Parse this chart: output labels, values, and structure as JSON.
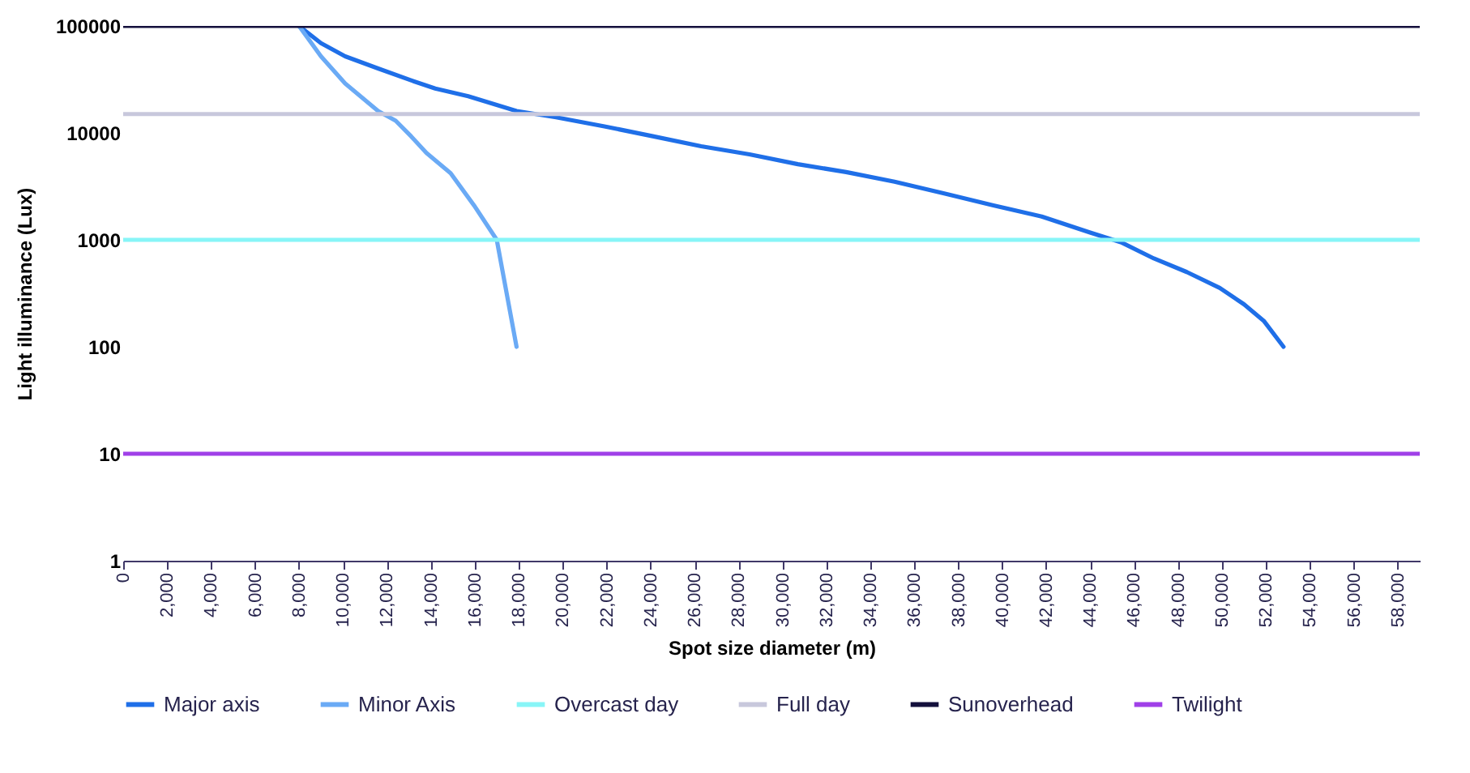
{
  "chart_data": {
    "type": "line",
    "xlabel": "Spot size diameter (m)",
    "ylabel": "Light illuminance (Lux)",
    "log": "y",
    "legend": "bottom",
    "grid": false,
    "xlim": [
      0,
      59000
    ],
    "ylim": [
      1,
      100000
    ],
    "xticks": [
      0,
      {
        "value": 2000,
        "label": "2,000"
      },
      {
        "value": 4000,
        "label": "4,000"
      },
      {
        "value": 6000,
        "label": "6,000"
      },
      {
        "value": 8000,
        "label": "8,000"
      },
      {
        "value": 10000,
        "label": "10,000"
      },
      {
        "value": 12000,
        "label": "12,000"
      },
      {
        "value": 14000,
        "label": "14,000"
      },
      {
        "value": 16000,
        "label": "16,000"
      },
      {
        "value": 18000,
        "label": "18,000"
      },
      {
        "value": 20000,
        "label": "20,000"
      },
      {
        "value": 22000,
        "label": "22,000"
      },
      {
        "value": 24000,
        "label": "24,000"
      },
      {
        "value": 26000,
        "label": "26,000"
      },
      {
        "value": 28000,
        "label": "28,000"
      },
      {
        "value": 30000,
        "label": "30,000"
      },
      {
        "value": 32000,
        "label": "32,000"
      },
      {
        "value": 34000,
        "label": "34,000"
      },
      {
        "value": 36000,
        "label": "36,000"
      },
      {
        "value": 38000,
        "label": "38,000"
      },
      {
        "value": 40000,
        "label": "40,000"
      },
      {
        "value": 42000,
        "label": "42,000"
      },
      {
        "value": 44000,
        "label": "44,000"
      },
      {
        "value": 46000,
        "label": "46,000"
      },
      {
        "value": 48000,
        "label": "48,000"
      },
      {
        "value": 50000,
        "label": "50,000"
      },
      {
        "value": 52000,
        "label": "52,000"
      },
      {
        "value": 54000,
        "label": "54,000"
      },
      {
        "value": 56000,
        "label": "56,000"
      },
      {
        "value": 58000,
        "label": "58,000"
      }
    ],
    "yticks": [
      1,
      10,
      100,
      1000,
      10000,
      100000
    ],
    "series": [
      {
        "name": "Major axis",
        "color": "#1f6fe8",
        "x": [
          8000,
          9000,
          10100,
          11600,
          13100,
          14200,
          15700,
          17900,
          19700,
          21900,
          24100,
          26300,
          28500,
          30700,
          32900,
          35100,
          37400,
          39600,
          41800,
          44000,
          45400,
          46900,
          48400,
          49900,
          51000,
          51900,
          52800
        ],
        "values": [
          100000,
          69000,
          52000,
          40000,
          31000,
          26000,
          22000,
          16000,
          14000,
          11500,
          9300,
          7500,
          6300,
          5100,
          4300,
          3500,
          2700,
          2100,
          1650,
          1170,
          950,
          670,
          500,
          355,
          250,
          175,
          100
        ]
      },
      {
        "name": "Minor Axis",
        "color": "#6aaaf5",
        "x": [
          8000,
          9000,
          10100,
          11600,
          12400,
          13100,
          13800,
          14900,
          16000,
          17000,
          17900
        ],
        "values": [
          100000,
          52000,
          29000,
          16000,
          13000,
          9300,
          6500,
          4200,
          2050,
          1000,
          100
        ]
      },
      {
        "name": "Overcast day",
        "color": "#88f5f7",
        "x": [
          0,
          59000
        ],
        "values": [
          1000,
          1000
        ]
      },
      {
        "name": "Full day",
        "color": "#c8c8dc",
        "x": [
          0,
          59000
        ],
        "values": [
          15000,
          15000
        ]
      },
      {
        "name": "Sunoverhead",
        "color": "#14103c",
        "x": [
          0,
          59000
        ],
        "values": [
          100000,
          100000
        ]
      },
      {
        "name": "Twilight",
        "color": "#a040e8",
        "x": [
          0,
          59000
        ],
        "values": [
          10,
          10
        ]
      }
    ]
  }
}
